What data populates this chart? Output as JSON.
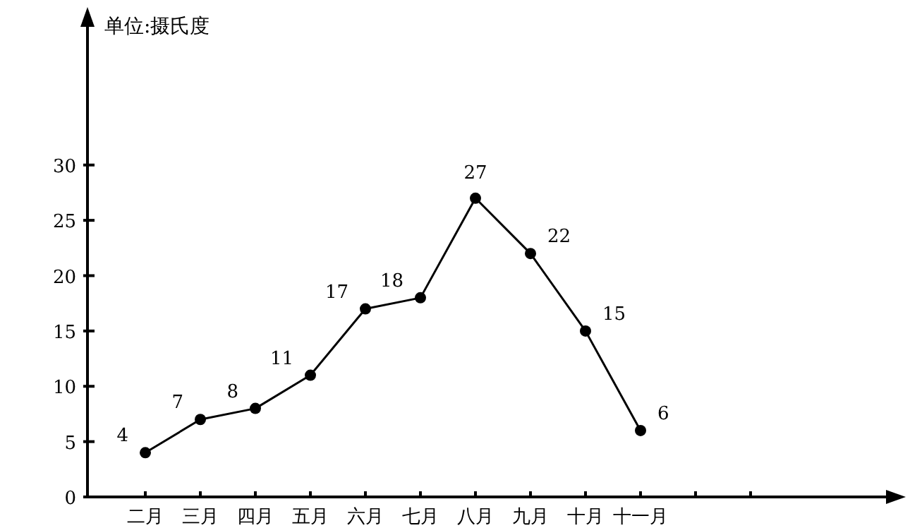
{
  "chart_data": {
    "type": "line",
    "ylabel": "单位:摄氏度",
    "categories": [
      "二月",
      "三月",
      "四月",
      "五月",
      "六月",
      "七月",
      "八月",
      "九月",
      "十月",
      "十一月",
      null,
      null
    ],
    "values": [
      4,
      7,
      8,
      11,
      17,
      18,
      27,
      22,
      15,
      6,
      null,
      null
    ],
    "color": "#000000",
    "marker": "circle",
    "line_style": "solid",
    "data_labels": true,
    "ylim": [
      0,
      43
    ],
    "yticks": [
      0,
      5,
      10,
      15,
      20,
      25,
      30
    ]
  }
}
